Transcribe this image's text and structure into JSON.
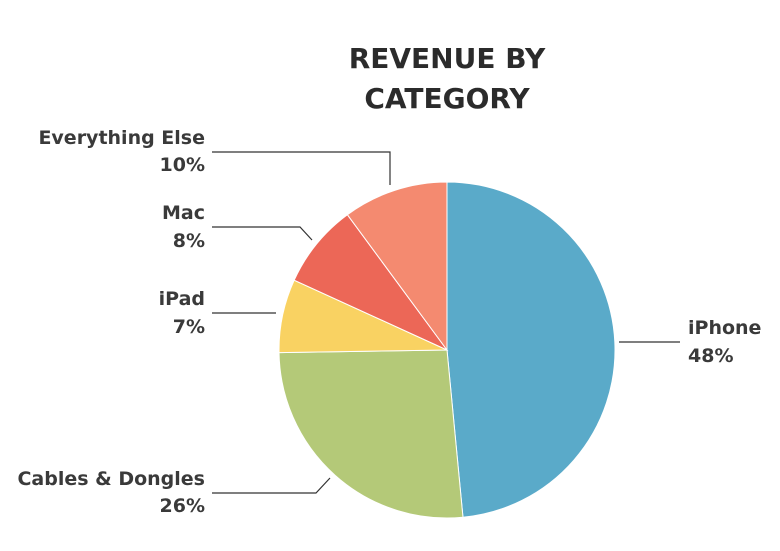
{
  "chart_data": {
    "type": "pie",
    "title_lines": [
      "REVENUE BY",
      "CATEGORY"
    ],
    "start_angle_deg": 0,
    "direction": "clockwise",
    "slices": [
      {
        "label": "iPhone",
        "value": 48,
        "value_text": "48%",
        "color": "#5aaac9"
      },
      {
        "label": "Cables & Dongles",
        "value": 26,
        "value_text": "26%",
        "color": "#b4c978"
      },
      {
        "label": "iPad",
        "value": 7,
        "value_text": "7%",
        "color": "#f9d262"
      },
      {
        "label": "Mac",
        "value": 8,
        "value_text": "8%",
        "color": "#ec6757"
      },
      {
        "label": "Everything Else",
        "value": 10,
        "value_text": "10%",
        "color": "#f48a70"
      }
    ]
  }
}
